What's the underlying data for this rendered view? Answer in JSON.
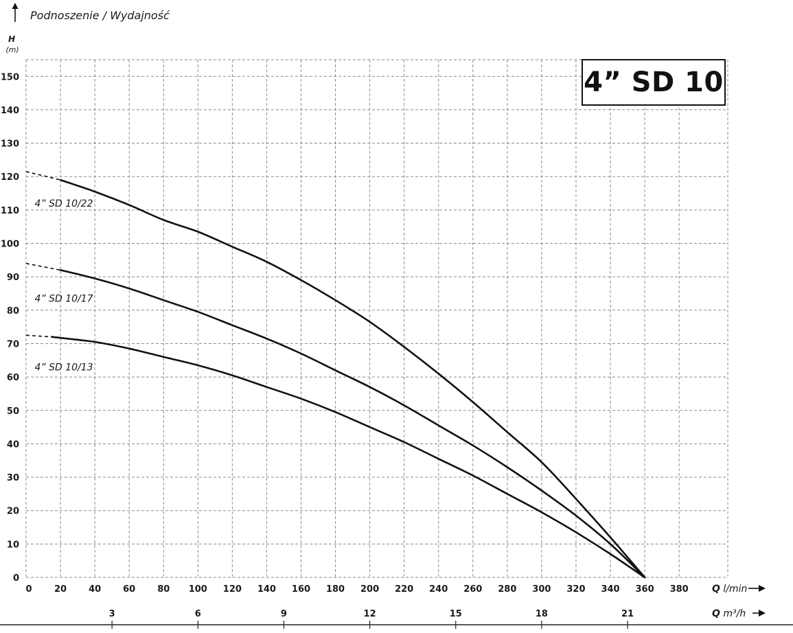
{
  "chart_data": {
    "type": "line",
    "title": "4” SD 10",
    "axis_title": "Podnoszenie / Wydajność",
    "ylabel": "H",
    "yunit": "(m)",
    "xlabel_top": "Q",
    "xunit_top": "l/min",
    "xlabel_bottom": "Q",
    "xunit_bottom": "m³/h",
    "xlim": [
      0,
      410
    ],
    "ylim": [
      0,
      155
    ],
    "x_ticks": [
      0,
      20,
      40,
      60,
      80,
      100,
      120,
      140,
      160,
      180,
      200,
      220,
      240,
      260,
      280,
      300,
      320,
      340,
      360,
      380
    ],
    "y_ticks": [
      0,
      10,
      20,
      30,
      40,
      50,
      60,
      70,
      80,
      90,
      100,
      110,
      120,
      130,
      140,
      150
    ],
    "secondary_x_ticks": [
      {
        "label": "3",
        "lmin": 50
      },
      {
        "label": "6",
        "lmin": 100
      },
      {
        "label": "9",
        "lmin": 150
      },
      {
        "label": "12",
        "lmin": 200
      },
      {
        "label": "15",
        "lmin": 250
      },
      {
        "label": "18",
        "lmin": 300
      },
      {
        "label": "21",
        "lmin": 350
      }
    ],
    "grid": true,
    "series": [
      {
        "name": "4” SD 10/22",
        "label_at": [
          5,
          111
        ],
        "dashed_until": 20,
        "points": [
          [
            0,
            121.5
          ],
          [
            20,
            119
          ],
          [
            40,
            115.5
          ],
          [
            60,
            111.5
          ],
          [
            80,
            107
          ],
          [
            100,
            103.5
          ],
          [
            120,
            99
          ],
          [
            140,
            94.5
          ],
          [
            160,
            89
          ],
          [
            180,
            83
          ],
          [
            200,
            76.5
          ],
          [
            220,
            69
          ],
          [
            240,
            61
          ],
          [
            260,
            52.5
          ],
          [
            280,
            43.5
          ],
          [
            300,
            34.5
          ],
          [
            320,
            23.5
          ],
          [
            340,
            12
          ],
          [
            360,
            0
          ]
        ]
      },
      {
        "name": "4” SD 10/17",
        "label_at": [
          5,
          82.5
        ],
        "dashed_until": 20,
        "points": [
          [
            0,
            94
          ],
          [
            20,
            92
          ],
          [
            40,
            89.5
          ],
          [
            60,
            86.5
          ],
          [
            80,
            83
          ],
          [
            100,
            79.5
          ],
          [
            120,
            75.5
          ],
          [
            140,
            71.5
          ],
          [
            160,
            67
          ],
          [
            180,
            62
          ],
          [
            200,
            57
          ],
          [
            220,
            51.5
          ],
          [
            240,
            45.5
          ],
          [
            260,
            39.5
          ],
          [
            280,
            33
          ],
          [
            300,
            26
          ],
          [
            320,
            18.5
          ],
          [
            340,
            10
          ],
          [
            360,
            0
          ]
        ]
      },
      {
        "name": "4” SD 10/13",
        "label_at": [
          5,
          62
        ],
        "dashed_until": 15,
        "points": [
          [
            0,
            72.5
          ],
          [
            15,
            72
          ],
          [
            40,
            70.5
          ],
          [
            60,
            68.5
          ],
          [
            80,
            66
          ],
          [
            100,
            63.5
          ],
          [
            120,
            60.5
          ],
          [
            140,
            57
          ],
          [
            160,
            53.5
          ],
          [
            180,
            49.5
          ],
          [
            200,
            45
          ],
          [
            220,
            40.5
          ],
          [
            240,
            35.5
          ],
          [
            260,
            30.5
          ],
          [
            280,
            25
          ],
          [
            300,
            19.5
          ],
          [
            320,
            13.5
          ],
          [
            340,
            7
          ],
          [
            360,
            0
          ]
        ]
      }
    ]
  }
}
